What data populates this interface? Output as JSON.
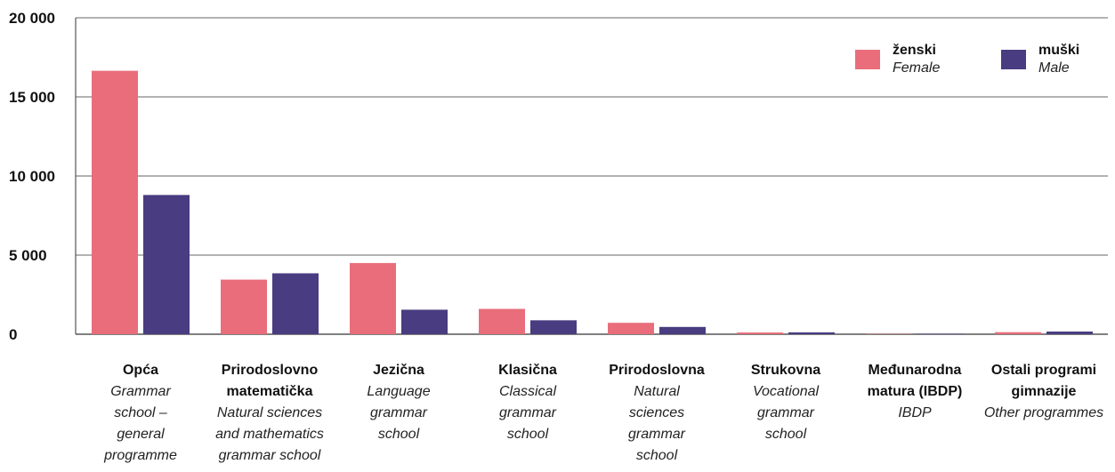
{
  "chart_data": {
    "type": "bar",
    "categories": [
      {
        "hr": [
          "Opća"
        ],
        "en": [
          "Grammar",
          "school –",
          "general",
          "programme"
        ]
      },
      {
        "hr": [
          "Prirodoslovno",
          "matematička"
        ],
        "en": [
          "Natural sciences",
          "and mathematics",
          "grammar school"
        ]
      },
      {
        "hr": [
          "Jezična"
        ],
        "en": [
          "Language",
          "grammar",
          "school"
        ]
      },
      {
        "hr": [
          "Klasična"
        ],
        "en": [
          "Classical",
          "grammar",
          "school"
        ]
      },
      {
        "hr": [
          "Prirodoslovna"
        ],
        "en": [
          "Natural",
          "sciences",
          "grammar",
          "school"
        ]
      },
      {
        "hr": [
          "Strukovna"
        ],
        "en": [
          "Vocational",
          "grammar",
          "school"
        ]
      },
      {
        "hr": [
          "Međunarodna",
          "matura (IBDP)"
        ],
        "en": [
          "IBDP"
        ]
      },
      {
        "hr": [
          "Ostali programi",
          "gimnazije"
        ],
        "en": [
          "Other programmes"
        ]
      }
    ],
    "series": [
      {
        "name": "ženski",
        "name_en": "Female",
        "color": "#e96d7a",
        "values": [
          16650,
          3450,
          4500,
          1600,
          720,
          110,
          20,
          130
        ]
      },
      {
        "name": "muški",
        "name_en": "Male",
        "color": "#493c80",
        "values": [
          8800,
          3850,
          1550,
          880,
          460,
          120,
          30,
          170
        ]
      }
    ],
    "yticks": [
      0,
      5000,
      10000,
      15000,
      20000
    ],
    "ytick_labels": [
      "0",
      "5 000",
      "10 000",
      "15 000",
      "20 000"
    ],
    "ylim": [
      0,
      20000
    ],
    "grid": true,
    "legend_position": "top-right"
  }
}
